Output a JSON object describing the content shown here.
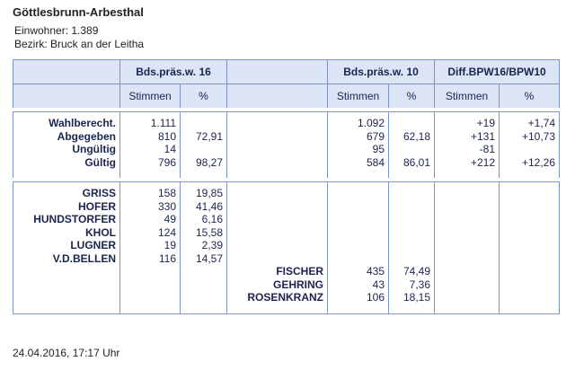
{
  "header": {
    "title": "Göttlesbrunn-Arbesthal",
    "population": "Einwohner: 1.389",
    "district": "Bezirk: Bruck an der Leitha"
  },
  "table": {
    "groups": [
      "Bds.präs.w. 16",
      "Bds.präs.w. 10",
      "Diff.BPW16/BPW10"
    ],
    "subheaders": [
      "Stimmen",
      "%",
      "Stimmen",
      "%",
      "Stimmen",
      "%"
    ],
    "sections": [
      {
        "rows": [
          {
            "label": "Wahlberecht.",
            "s16": "1.111",
            "s10": "1.092",
            "sd": "+19",
            "pd": "+1,74"
          },
          {
            "label": "Abgegeben",
            "s16": "810",
            "p16": "72,91",
            "s10": "679",
            "p10": "62,18",
            "sd": "+131",
            "pd": "+10,73"
          },
          {
            "label": "Ungültig",
            "s16": "14",
            "s10": "95",
            "sd": "-81"
          },
          {
            "label": "Gültig",
            "s16": "796",
            "p16": "98,27",
            "s10": "584",
            "p10": "86,01",
            "sd": "+212",
            "pd": "+12,26"
          }
        ]
      },
      {
        "rows": [
          {
            "label": "GRISS",
            "s16": "158",
            "p16": "19,85"
          },
          {
            "label": "HOFER",
            "s16": "330",
            "p16": "41,46"
          },
          {
            "label": "HUNDSTORFER",
            "s16": "49",
            "p16": "6,16"
          },
          {
            "label": "KHOL",
            "s16": "124",
            "p16": "15,58"
          },
          {
            "label": "LUGNER",
            "s16": "19",
            "p16": "2,39"
          },
          {
            "label": "V.D.BELLEN",
            "s16": "116",
            "p16": "14,57"
          },
          {
            "label2": "FISCHER",
            "s10": "435",
            "p10": "74,49"
          },
          {
            "label2": "GEHRING",
            "s10": "43",
            "p10": "7,36"
          },
          {
            "label2": "ROSENKRANZ",
            "s10": "106",
            "p10": "18,15"
          }
        ]
      }
    ]
  },
  "footer": {
    "timestamp": "24.04.2016, 17:17 Uhr"
  }
}
